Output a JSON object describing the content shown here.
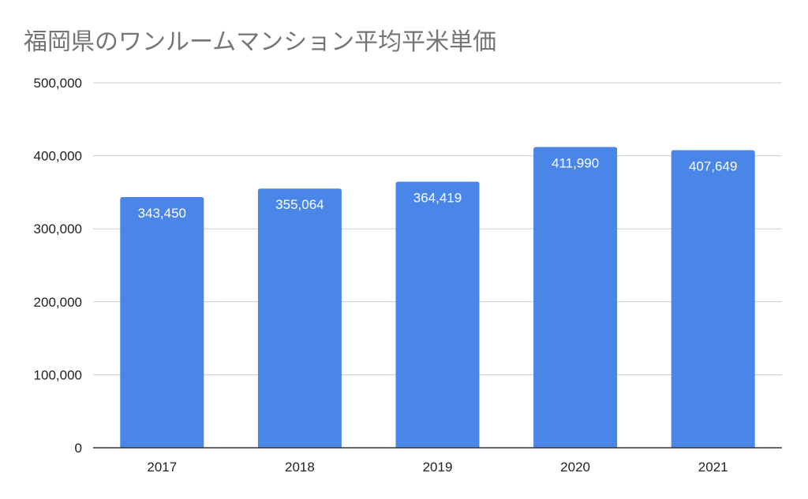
{
  "chart_data": {
    "type": "bar",
    "title": "福岡県のワンルームマンション平均平米単価",
    "xlabel": "",
    "ylabel": "",
    "categories": [
      "2017",
      "2018",
      "2019",
      "2020",
      "2021"
    ],
    "values": [
      343450,
      355064,
      364419,
      411990,
      407649
    ],
    "data_labels": [
      "343,450",
      "355,064",
      "364,419",
      "411,990",
      "407,649"
    ],
    "ylim": [
      0,
      500000
    ],
    "yticks": [
      0,
      100000,
      200000,
      300000,
      400000,
      500000
    ],
    "ytick_labels": [
      "0",
      "100,000",
      "200,000",
      "300,000",
      "400,000",
      "500,000"
    ],
    "grid": true,
    "legend": "none",
    "bar_color": "#4a86e8",
    "grid_color": "#cccccc"
  }
}
